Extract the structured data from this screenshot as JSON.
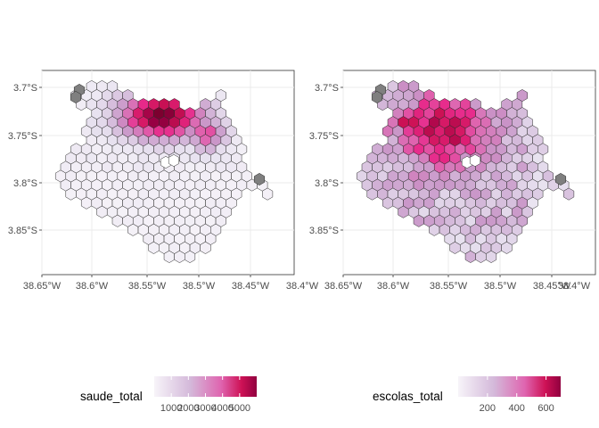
{
  "chart_data": [
    {
      "type": "map",
      "fill_variable": "saude_total",
      "x_ticks": [
        "38.65°W",
        "38.6°W",
        "38.55°W",
        "38.5°W",
        "38.45°W",
        "38.4°W"
      ],
      "y_ticks": [
        "3.7°S",
        "3.75°S",
        "3.8°S",
        "3.85°S"
      ],
      "legend": {
        "title": "saude_total",
        "range": [
          0,
          6000
        ],
        "labels": [
          "1000",
          "2000",
          "3000",
          "4000",
          "5000"
        ]
      },
      "na_color": "#7f7f7f"
    },
    {
      "type": "map",
      "fill_variable": "escolas_total",
      "x_ticks": [
        "38.65°W",
        "38.6°W",
        "38.55°W",
        "38.5°W",
        "38.45°W",
        "38.4°W"
      ],
      "y_ticks": [
        "3.7°S",
        "3.75°S",
        "3.8°S",
        "3.85°S"
      ],
      "legend": {
        "title": "escolas_total",
        "range": [
          0,
          700
        ],
        "labels": [
          "200",
          "400",
          "600"
        ]
      },
      "na_color": "#7f7f7f"
    }
  ],
  "colors": {
    "low": "#f7f4f9",
    "mid": "#c994c7",
    "high": "#e7298a",
    "max": "#91003f",
    "grid": "#ebebeb"
  }
}
